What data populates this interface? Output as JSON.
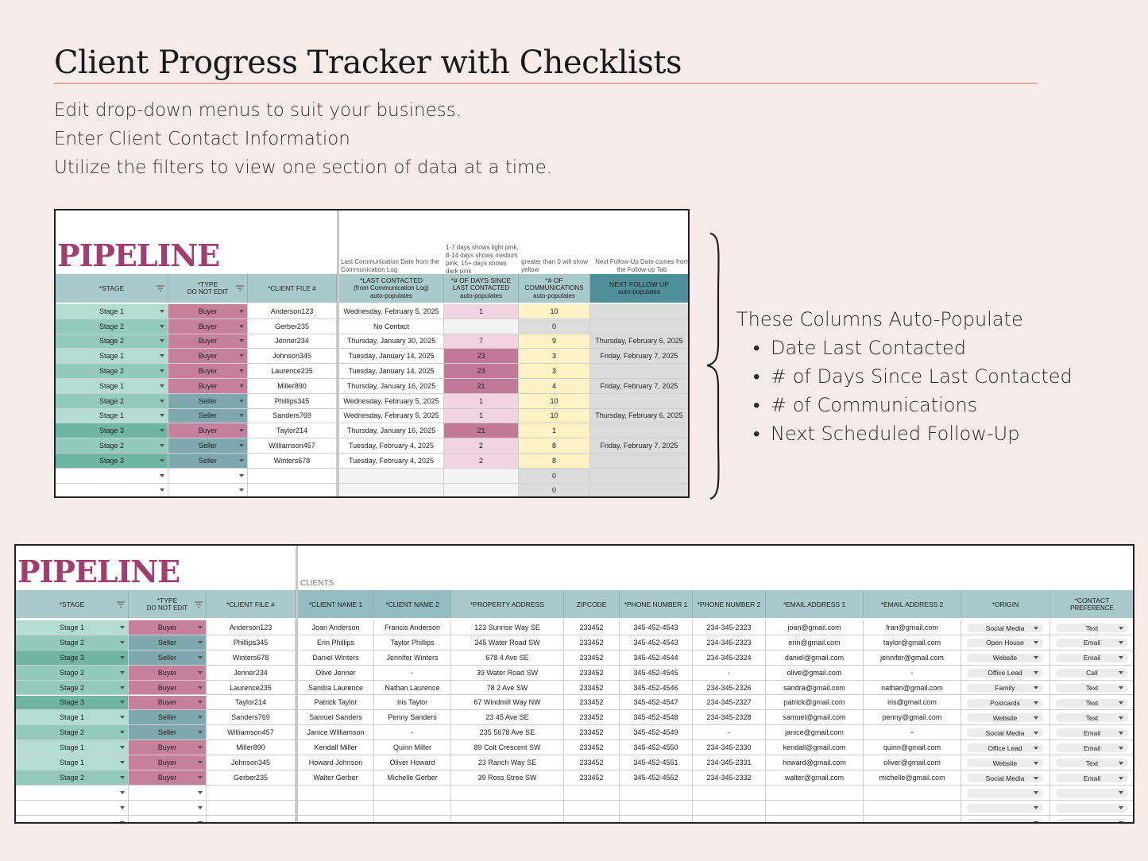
{
  "header": {
    "title": "Client Progress Tracker with Checklists",
    "lines": [
      "Edit drop-down menus to suit your business.",
      "Enter Client Contact Information",
      "Utilize the filters to view one section of data at a time."
    ]
  },
  "sheet1": {
    "title": "PIPELINE",
    "notes": [
      "Last Communication Date from the Communication Log",
      "1-7 days shows light pink, 8-14 days shows medium pink, 15+ days shows dark pink",
      "greater than 0 will show yellow",
      "Next Follow-Up Date comes from the Follow-up Tab"
    ],
    "headers": [
      {
        "l1": "*STAGE",
        "l2": ""
      },
      {
        "l1": "*TYPE",
        "l2": "DO NOT EDIT"
      },
      {
        "l1": "*CLIENT FILE #",
        "l2": ""
      },
      {
        "l1": "*LAST CONTACTED",
        "l2": "(from Communication Log)",
        "l3": "auto-populates"
      },
      {
        "l1": "*# OF DAYS SINCE",
        "l2": "LAST CONTACTED",
        "l3": "auto-populates"
      },
      {
        "l1": "*# OF",
        "l2": "COMMUNICATIONS",
        "l3": "auto-populates"
      },
      {
        "l1": "NEXT FOLLOW UP",
        "l2": "auto-populates",
        "l3": ""
      }
    ],
    "rows": [
      [
        "Stage 1",
        "Buyer",
        "Anderson123",
        "Wednesday, February 5, 2025",
        "1",
        "10",
        ""
      ],
      [
        "Stage 2",
        "Buyer",
        "Gerber235",
        "No Contact",
        "",
        "0",
        ""
      ],
      [
        "Stage 2",
        "Buyer",
        "Jenner234",
        "Thursday, January 30, 2025",
        "7",
        "9",
        "Thursday, February 6, 2025"
      ],
      [
        "Stage 1",
        "Buyer",
        "Johnson345",
        "Tuesday, January 14, 2025",
        "23",
        "3",
        "Friday, February 7, 2025"
      ],
      [
        "Stage 2",
        "Buyer",
        "Laurence235",
        "Tuesday, January 14, 2025",
        "23",
        "3",
        ""
      ],
      [
        "Stage 1",
        "Buyer",
        "Miller890",
        "Thursday, January 16, 2025",
        "21",
        "4",
        "Friday, February 7, 2025"
      ],
      [
        "Stage 2",
        "Seller",
        "Phillips345",
        "Wednesday, February 5, 2025",
        "1",
        "10",
        ""
      ],
      [
        "Stage 1",
        "Seller",
        "Sanders769",
        "Wednesday, February 5, 2025",
        "1",
        "10",
        "Thursday, February 6, 2025"
      ],
      [
        "Stage 3",
        "Buyer",
        "Taylor214",
        "Thursday, January 16, 2025",
        "21",
        "1",
        ""
      ],
      [
        "Stage 2",
        "Seller",
        "Williamson457",
        "Tuesday, February 4, 2025",
        "2",
        "8",
        "Friday, February 7, 2025"
      ],
      [
        "Stage 3",
        "Seller",
        "Winters678",
        "Tuesday, February 4, 2025",
        "2",
        "8",
        ""
      ],
      [
        "",
        "",
        "",
        "",
        "",
        "0",
        ""
      ],
      [
        "",
        "",
        "",
        "",
        "",
        "0",
        ""
      ]
    ]
  },
  "autopop": {
    "title": "These Columns Auto-Populate",
    "items": [
      "Date Last Contacted",
      "# of Days Since Last Contacted",
      "# of Communications",
      "Next Scheduled Follow-Up"
    ]
  },
  "sheet2": {
    "title": "PIPELINE",
    "section_label": "CLIENTS",
    "headers": [
      {
        "l1": "*STAGE",
        "l2": ""
      },
      {
        "l1": "*TYPE",
        "l2": "DO NOT EDIT"
      },
      {
        "l1": "*CLIENT FILE #",
        "l2": ""
      },
      {
        "l1": "*CLIENT NAME 1",
        "l2": ""
      },
      {
        "l1": "*CLIENT NAME 2",
        "l2": ""
      },
      {
        "l1": "*PROPERTY ADDRESS",
        "l2": ""
      },
      {
        "l1": "ZIPCODE",
        "l2": ""
      },
      {
        "l1": "*PHONE NUMBER 1",
        "l2": ""
      },
      {
        "l1": "*PHONE NUMBER 2",
        "l2": ""
      },
      {
        "l1": "*EMAIL ADDRESS 1",
        "l2": ""
      },
      {
        "l1": "*EMAIL ADDRESS 2",
        "l2": ""
      },
      {
        "l1": "*ORIGIN",
        "l2": ""
      },
      {
        "l1": "*CONTACT",
        "l2": "PREFERENCE"
      }
    ],
    "rows": [
      [
        "Stage 1",
        "Buyer",
        "Anderson123",
        "Joan Anderson",
        "Francis Anderson",
        "123 Sunrise Way SE",
        "233452",
        "345-452-4543",
        "234-345-2323",
        "joan@gmail.com",
        "fran@gmail.com",
        "Social Media",
        "Text"
      ],
      [
        "Stage 2",
        "Seller",
        "Phillips345",
        "Erin Phillips",
        "Taylor Phillips",
        "345 Water Road SW",
        "233452",
        "345-452-4543",
        "234-345-2323",
        "erin@gmail.com",
        "taylor@gmail.com",
        "Open House",
        "Email"
      ],
      [
        "Stage 3",
        "Seller",
        "Winters678",
        "Daniel Winters",
        "Jennifer Winters",
        "678 4 Ave SE",
        "233452",
        "345-452-4544",
        "234-345-2324",
        "daniel@gmail.com",
        "jennifer@gmail.com",
        "Website",
        "Email"
      ],
      [
        "Stage 2",
        "Buyer",
        "Jenner234",
        "Olive Jenner",
        "-",
        "39 Water Road SW",
        "233452",
        "345-452-4545",
        "-",
        "olive@gmail.com",
        "-",
        "Office Lead",
        "Call"
      ],
      [
        "Stage 2",
        "Buyer",
        "Laurence235",
        "Sandra Laurence",
        "Nathan Laurence",
        "78 2 Ave SW",
        "233452",
        "345-452-4546",
        "234-345-2326",
        "sandra@gmail.com",
        "nathan@gmail.com",
        "Family",
        "Text"
      ],
      [
        "Stage 3",
        "Buyer",
        "Taylor214",
        "Patrick Taylor",
        "Iris Taylor",
        "67 Windmill Way NW",
        "233452",
        "345-452-4547",
        "234-345-2327",
        "patrick@gmail.com",
        "iris@gmail.com",
        "Postcards",
        "Text"
      ],
      [
        "Stage 1",
        "Seller",
        "Sanders769",
        "Samuel Sanders",
        "Penny Sanders",
        "23 45 Ave SE",
        "233452",
        "345-452-4548",
        "234-345-2328",
        "samuel@gmail.com",
        "penny@gmail.com",
        "Website",
        "Text"
      ],
      [
        "Stage 2",
        "Seller",
        "Williamson457",
        "Janice Williamson",
        "-",
        "235 5678 Ave SE",
        "233452",
        "345-452-4549",
        "-",
        "janice@gmail.com",
        "-",
        "Social Media",
        "Email"
      ],
      [
        "Stage 1",
        "Buyer",
        "Miller890",
        "Kendall Miller",
        "Quinn Miller",
        "89 Colt Crescent SW",
        "233452",
        "345-452-4550",
        "234-345-2330",
        "kendall@gmail.com",
        "quinn@gmail.com",
        "Office Lead",
        "Email"
      ],
      [
        "Stage 1",
        "Buyer",
        "Johnson345",
        "Howard Johnson",
        "Oliver Howard",
        "23 Ranch Way SE",
        "233452",
        "345-452-4551",
        "234-345-2331",
        "howard@gmail.com",
        "oliver@gmail.com",
        "Website",
        "Text"
      ],
      [
        "Stage 2",
        "Buyer",
        "Gerber235",
        "Walter Gerber",
        "Michelle Gerber",
        "39 Ross Stree SW",
        "233452",
        "345-452-4552",
        "234-345-2332",
        "walter@gmail.com",
        "michelle@gmail.com",
        "Social Media",
        "Email"
      ],
      [
        "",
        "",
        "",
        "",
        "",
        "",
        "",
        "",
        "",
        "",
        "",
        "",
        ""
      ],
      [
        "",
        "",
        "",
        "",
        "",
        "",
        "",
        "",
        "",
        "",
        "",
        "",
        ""
      ],
      [
        "",
        "",
        "",
        "",
        "",
        "",
        "",
        "",
        "",
        "",
        "",
        "",
        ""
      ]
    ]
  },
  "colors": {
    "stage1": "#b3ddd1",
    "stage2": "#92cbbc",
    "stage3": "#6eb6a2",
    "buyer": "#c6809c",
    "seller": "#7fa7ae",
    "header": "#a9c9cc",
    "header_dark": "#4f8f99",
    "light_pink": "#f2d4e0",
    "dark_pink": "#c27897",
    "yellow": "#fff2c4",
    "gray": "#dcdcdc",
    "title": "#a03f6f"
  }
}
